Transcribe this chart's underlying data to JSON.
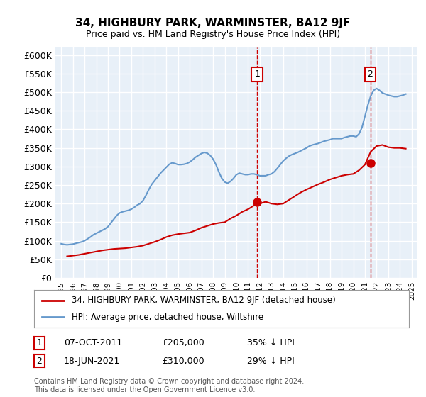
{
  "title": "34, HIGHBURY PARK, WARMINSTER, BA12 9JF",
  "subtitle": "Price paid vs. HM Land Registry's House Price Index (HPI)",
  "xlabel": "",
  "ylabel": "",
  "ylim": [
    0,
    620000
  ],
  "yticks": [
    0,
    50000,
    100000,
    150000,
    200000,
    250000,
    300000,
    350000,
    400000,
    450000,
    500000,
    550000,
    600000
  ],
  "ytick_labels": [
    "£0",
    "£50K",
    "£100K",
    "£150K",
    "£200K",
    "£250K",
    "£300K",
    "£350K",
    "£400K",
    "£450K",
    "£500K",
    "£550K",
    "£600K"
  ],
  "background_color": "#e8f0f8",
  "plot_bg_color": "#e8f0f8",
  "grid_color": "#ffffff",
  "hpi_color": "#6699cc",
  "property_color": "#cc0000",
  "marker1_year": 2011.77,
  "marker1_value": 205000,
  "marker2_year": 2021.46,
  "marker2_value": 310000,
  "legend_label_property": "34, HIGHBURY PARK, WARMINSTER, BA12 9JF (detached house)",
  "legend_label_hpi": "HPI: Average price, detached house, Wiltshire",
  "annotation1": "1   07-OCT-2011        £205,000       35% ↓ HPI",
  "annotation2": "2   18-JUN-2021        £310,000       29% ↓ HPI",
  "footnote": "Contains HM Land Registry data © Crown copyright and database right 2024.\nThis data is licensed under the Open Government Licence v3.0.",
  "hpi_data_x": [
    1995.0,
    1995.25,
    1995.5,
    1995.75,
    1996.0,
    1996.25,
    1996.5,
    1996.75,
    1997.0,
    1997.25,
    1997.5,
    1997.75,
    1998.0,
    1998.25,
    1998.5,
    1998.75,
    1999.0,
    1999.25,
    1999.5,
    1999.75,
    2000.0,
    2000.25,
    2000.5,
    2000.75,
    2001.0,
    2001.25,
    2001.5,
    2001.75,
    2002.0,
    2002.25,
    2002.5,
    2002.75,
    2003.0,
    2003.25,
    2003.5,
    2003.75,
    2004.0,
    2004.25,
    2004.5,
    2004.75,
    2005.0,
    2005.25,
    2005.5,
    2005.75,
    2006.0,
    2006.25,
    2006.5,
    2006.75,
    2007.0,
    2007.25,
    2007.5,
    2007.75,
    2008.0,
    2008.25,
    2008.5,
    2008.75,
    2009.0,
    2009.25,
    2009.5,
    2009.75,
    2010.0,
    2010.25,
    2010.5,
    2010.75,
    2011.0,
    2011.25,
    2011.5,
    2011.75,
    2012.0,
    2012.25,
    2012.5,
    2012.75,
    2013.0,
    2013.25,
    2013.5,
    2013.75,
    2014.0,
    2014.25,
    2014.5,
    2014.75,
    2015.0,
    2015.25,
    2015.5,
    2015.75,
    2016.0,
    2016.25,
    2016.5,
    2016.75,
    2017.0,
    2017.25,
    2017.5,
    2017.75,
    2018.0,
    2018.25,
    2018.5,
    2018.75,
    2019.0,
    2019.25,
    2019.5,
    2019.75,
    2020.0,
    2020.25,
    2020.5,
    2020.75,
    2021.0,
    2021.25,
    2021.5,
    2021.75,
    2022.0,
    2022.25,
    2022.5,
    2022.75,
    2023.0,
    2023.25,
    2023.5,
    2023.75,
    2024.0,
    2024.25,
    2024.5
  ],
  "hpi_data_y": [
    92000,
    90000,
    89000,
    90000,
    91000,
    93000,
    95000,
    97000,
    100000,
    105000,
    110000,
    116000,
    120000,
    124000,
    128000,
    132000,
    138000,
    148000,
    158000,
    168000,
    175000,
    178000,
    180000,
    182000,
    185000,
    190000,
    196000,
    200000,
    208000,
    222000,
    238000,
    252000,
    262000,
    272000,
    282000,
    290000,
    298000,
    306000,
    310000,
    308000,
    305000,
    305000,
    306000,
    308000,
    312000,
    318000,
    325000,
    330000,
    335000,
    338000,
    336000,
    330000,
    320000,
    305000,
    285000,
    268000,
    258000,
    255000,
    260000,
    268000,
    278000,
    282000,
    280000,
    278000,
    278000,
    280000,
    280000,
    278000,
    275000,
    275000,
    275000,
    278000,
    280000,
    286000,
    295000,
    305000,
    315000,
    322000,
    328000,
    332000,
    335000,
    338000,
    342000,
    346000,
    350000,
    355000,
    358000,
    360000,
    362000,
    365000,
    368000,
    370000,
    372000,
    375000,
    375000,
    375000,
    375000,
    378000,
    380000,
    382000,
    382000,
    380000,
    388000,
    405000,
    435000,
    465000,
    490000,
    505000,
    510000,
    505000,
    498000,
    495000,
    492000,
    490000,
    488000,
    488000,
    490000,
    492000,
    495000
  ],
  "property_data_x": [
    1995.5,
    1996.0,
    1996.5,
    1997.0,
    1997.5,
    1998.0,
    1998.5,
    1999.0,
    1999.5,
    2000.0,
    2000.5,
    2001.0,
    2001.5,
    2002.0,
    2002.5,
    2003.0,
    2003.5,
    2004.0,
    2004.5,
    2005.0,
    2005.5,
    2006.0,
    2006.5,
    2007.0,
    2007.5,
    2008.0,
    2008.5,
    2009.0,
    2009.5,
    2010.0,
    2010.5,
    2011.0,
    2011.5,
    2012.0,
    2012.5,
    2013.0,
    2013.5,
    2014.0,
    2014.5,
    2015.0,
    2015.5,
    2016.0,
    2016.5,
    2017.0,
    2017.5,
    2018.0,
    2018.5,
    2019.0,
    2019.5,
    2020.0,
    2020.5,
    2021.0,
    2021.5,
    2022.0,
    2022.5,
    2023.0,
    2023.5,
    2024.0,
    2024.5
  ],
  "property_data_y": [
    58000,
    60000,
    62000,
    65000,
    68000,
    71000,
    74000,
    76000,
    78000,
    79000,
    80000,
    82000,
    84000,
    87000,
    92000,
    97000,
    103000,
    110000,
    115000,
    118000,
    120000,
    122000,
    128000,
    135000,
    140000,
    145000,
    148000,
    150000,
    160000,
    168000,
    178000,
    185000,
    195000,
    200000,
    205000,
    200000,
    198000,
    200000,
    210000,
    220000,
    230000,
    238000,
    245000,
    252000,
    258000,
    265000,
    270000,
    275000,
    278000,
    280000,
    290000,
    305000,
    340000,
    355000,
    358000,
    352000,
    350000,
    350000,
    348000
  ]
}
